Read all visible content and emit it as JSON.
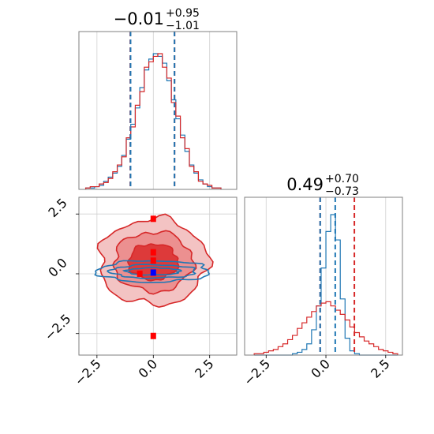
{
  "colors": {
    "red": "#d62728",
    "blue": "#1f77b4",
    "grid": "#d0d0d0",
    "frame": "#7f7f7f",
    "marker": "#ff0000",
    "marker_center": "#0000ff"
  },
  "panels": {
    "top": {
      "title_value": "−0.01",
      "title_plus": "+0.95",
      "title_minus": "−1.01"
    },
    "right": {
      "title_value": "0.49",
      "title_plus": "+0.70",
      "title_minus": "−0.73"
    },
    "x_ticklabels": [
      "−2.5",
      "0.0",
      "2.5"
    ],
    "y_ticklabels": [
      "2.5",
      "0.0",
      "−2.5"
    ]
  },
  "chart_data": [
    {
      "type": "histogram",
      "panel": "top-left marginal (parameter 1)",
      "xlim": [
        -3.3,
        3.7
      ],
      "bin_edges": [
        -3.0,
        -2.8,
        -2.6,
        -2.4,
        -2.2,
        -2.0,
        -1.8,
        -1.6,
        -1.4,
        -1.2,
        -1.0,
        -0.8,
        -0.6,
        -0.4,
        -0.2,
        0.0,
        0.2,
        0.4,
        0.6,
        0.8,
        1.0,
        1.2,
        1.4,
        1.6,
        1.8,
        2.0,
        2.2,
        2.4,
        2.6,
        2.8,
        3.0
      ],
      "series": [
        {
          "color": "blue",
          "counts": [
            1,
            1,
            2,
            3,
            6,
            9,
            12,
            17,
            25,
            37,
            48,
            60,
            75,
            88,
            96,
            100,
            98,
            93,
            80,
            66,
            52,
            40,
            28,
            18,
            12,
            7,
            4,
            2,
            1,
            1
          ]
        },
        {
          "color": "red",
          "counts": [
            1,
            2,
            2,
            4,
            5,
            8,
            13,
            18,
            24,
            38,
            46,
            62,
            72,
            90,
            94,
            98,
            100,
            90,
            82,
            64,
            54,
            38,
            30,
            17,
            13,
            6,
            4,
            3,
            1,
            1
          ]
        }
      ],
      "quantile_lines": [
        {
          "color": "red",
          "x": [
            -1.02,
            0.94
          ]
        },
        {
          "color": "blue",
          "x": [
            -1.01,
            0.94
          ]
        }
      ]
    },
    {
      "type": "contour",
      "panel": "bottom-left joint (parameter 1 vs parameter 2)",
      "xlim": [
        -3.3,
        3.7
      ],
      "ylim": [
        -3.4,
        3.2
      ],
      "series": [
        {
          "color": "red",
          "filled": true,
          "center": [
            0.0,
            0.5
          ],
          "levels_radii": [
            [
              2.4,
              1.8
            ],
            [
              1.75,
              1.25
            ],
            [
              1.1,
              0.75
            ]
          ]
        },
        {
          "color": "blue",
          "filled": false,
          "center": [
            0.0,
            0.1
          ],
          "levels_radii": [
            [
              2.5,
              0.45
            ],
            [
              1.9,
              0.28
            ],
            [
              1.2,
              0.15
            ]
          ]
        }
      ],
      "markers": [
        {
          "color": "marker",
          "x": 0.0,
          "y": 2.3
        },
        {
          "color": "marker",
          "x": 0.0,
          "y": 0.9
        },
        {
          "color": "marker",
          "x": 0.0,
          "y": 0.55
        },
        {
          "color": "marker",
          "x": -0.6,
          "y": 0.0
        },
        {
          "color": "marker",
          "x": 0.0,
          "y": -2.6
        },
        {
          "color": "marker_center",
          "x": 0.0,
          "y": 0.05
        }
      ]
    },
    {
      "type": "histogram",
      "panel": "bottom-right marginal (parameter 2)",
      "xlim": [
        -3.4,
        3.2
      ],
      "bin_edges": [
        -3.0,
        -2.8,
        -2.6,
        -2.4,
        -2.2,
        -2.0,
        -1.8,
        -1.6,
        -1.4,
        -1.2,
        -1.0,
        -0.8,
        -0.6,
        -0.4,
        -0.2,
        0.0,
        0.2,
        0.4,
        0.6,
        0.8,
        1.0,
        1.2,
        1.4,
        1.6,
        1.8,
        2.0,
        2.2,
        2.4,
        2.6,
        2.8,
        3.0
      ],
      "series": [
        {
          "color": "blue",
          "counts": [
            0,
            0,
            0,
            0,
            0,
            0,
            0,
            0,
            1,
            2,
            4,
            8,
            18,
            35,
            62,
            88,
            100,
            82,
            40,
            12,
            3,
            1,
            0,
            0,
            0,
            0,
            0,
            0,
            0,
            0
          ]
        },
        {
          "color": "red",
          "counts": [
            1,
            1,
            2,
            3,
            4,
            6,
            8,
            11,
            14,
            19,
            23,
            27,
            31,
            35,
            37,
            38,
            35,
            32,
            29,
            25,
            20,
            16,
            13,
            10,
            8,
            6,
            4,
            3,
            2,
            1
          ]
        }
      ],
      "quantile_lines": [
        {
          "color": "red",
          "x": [
            -0.24,
            1.19
          ]
        },
        {
          "color": "blue",
          "x": [
            -0.24,
            0.39
          ]
        }
      ]
    }
  ]
}
